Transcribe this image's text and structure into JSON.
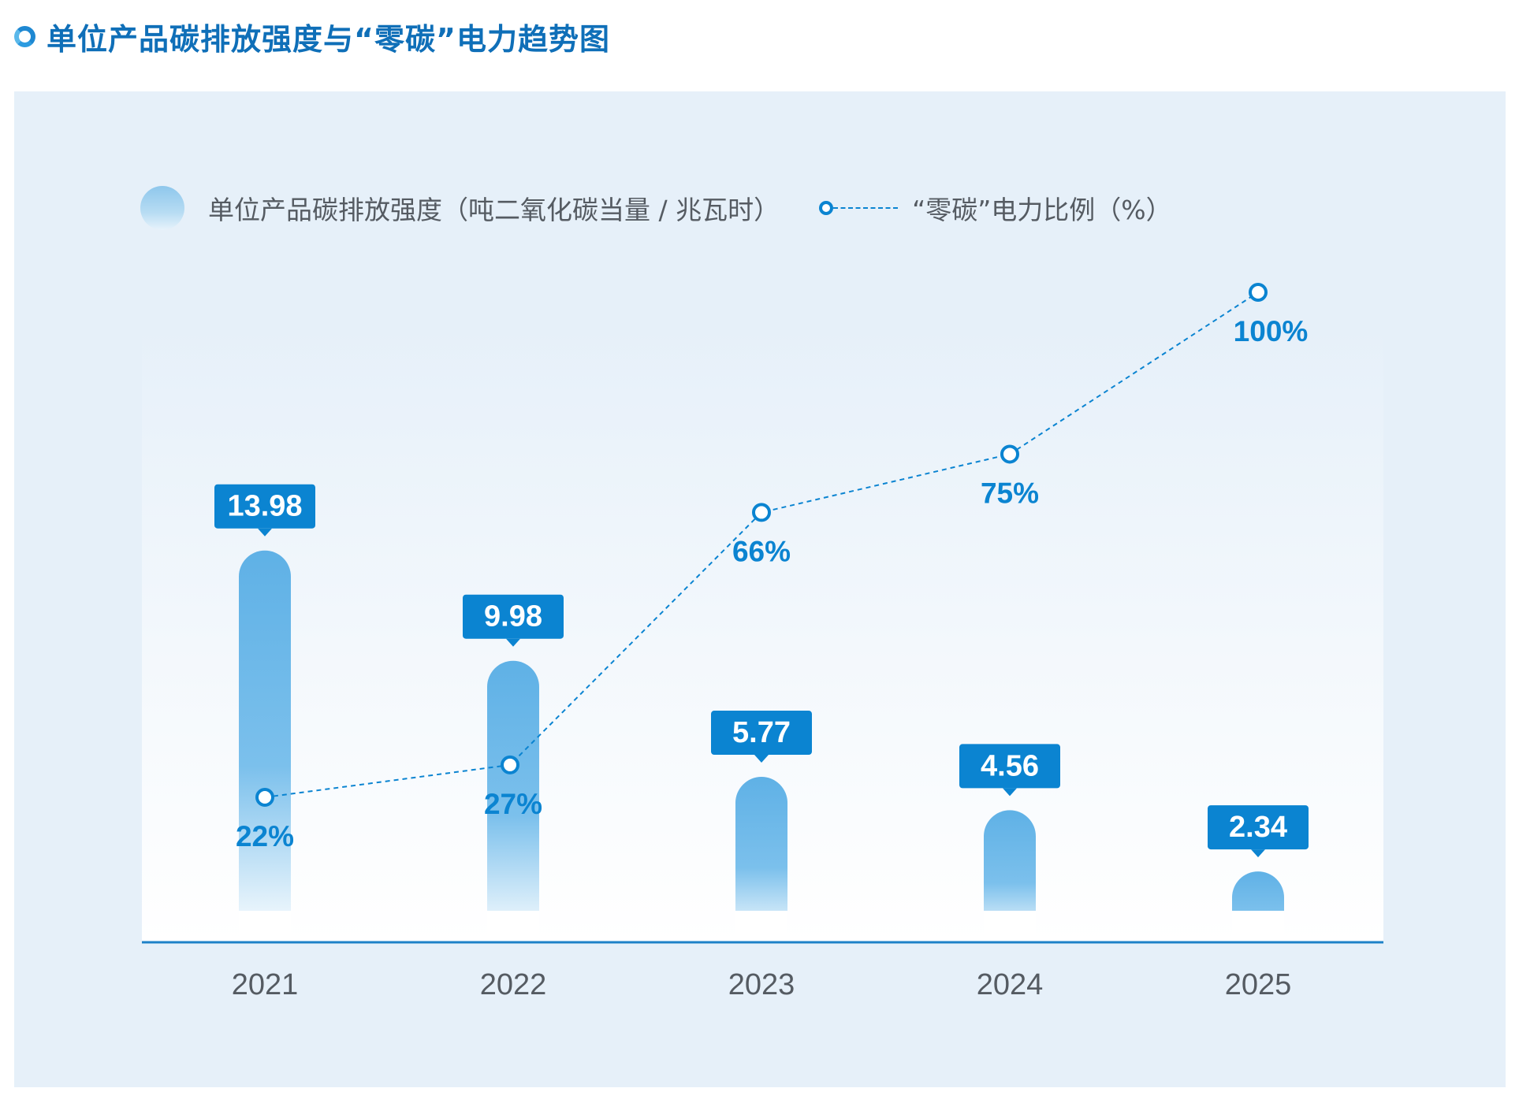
{
  "title": "单位产品碳排放强度与“零碳”电力趋势图",
  "legend": {
    "bar_label": "单位产品碳排放强度（吨二氧化碳当量 / 兆瓦时）",
    "line_label": "“零碳”电力比例（%）"
  },
  "colors": {
    "accent": "#0b84d1",
    "bar_top": "#5fb1e6",
    "label_box": "#0b84d1",
    "panel": "#e6f0f9"
  },
  "chart_data": {
    "type": "bar",
    "categories": [
      "2021",
      "2022",
      "2023",
      "2024",
      "2025"
    ],
    "series": [
      {
        "name": "单位产品碳排放强度（吨二氧化碳当量 / 兆瓦时）",
        "type": "bar",
        "values": [
          13.98,
          9.98,
          5.77,
          4.56,
          2.34
        ],
        "labels": [
          "13.98",
          "9.98",
          "5.77",
          "4.56",
          "2.34"
        ]
      },
      {
        "name": "“零碳”电力比例（%）",
        "type": "line",
        "values": [
          22,
          27,
          66,
          75,
          100
        ],
        "labels": [
          "22%",
          "27%",
          "66%",
          "75%",
          "100%"
        ]
      }
    ],
    "legend_position": "top-left",
    "grid": false
  }
}
